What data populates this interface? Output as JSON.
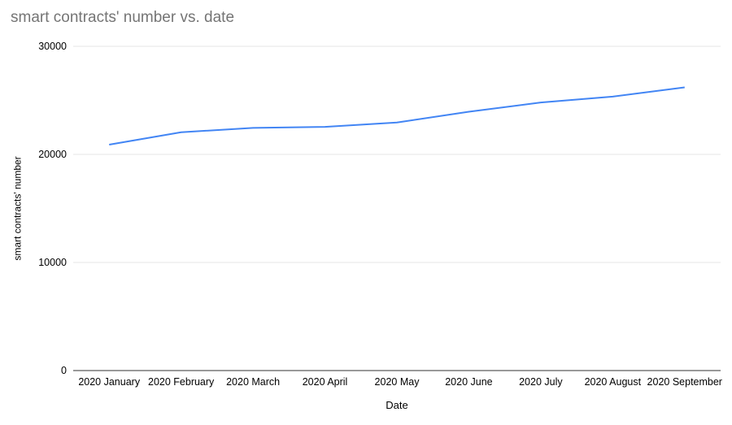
{
  "chart_data": {
    "type": "line",
    "title": "smart contracts' number vs. date",
    "xlabel": "Date",
    "ylabel": "smart contracts' number",
    "categories": [
      "2020 January",
      "2020 February",
      "2020 March",
      "2020 April",
      "2020 May",
      "2020 June",
      "2020 July",
      "2020 August",
      "2020 September"
    ],
    "series": [
      {
        "name": "smart contracts' number",
        "values": [
          20900,
          22050,
          22450,
          22550,
          22950,
          23950,
          24800,
          25350,
          26200
        ],
        "color": "#4285f4"
      }
    ],
    "ylim": [
      0,
      30000
    ],
    "yticks": [
      0,
      10000,
      20000,
      30000
    ],
    "grid": "horizontal-only",
    "legend": "none",
    "colors": {
      "title_text": "#757575",
      "tick_text": "#000000",
      "gridline": "#e6e6e6",
      "baseline": "#333333",
      "background": "#ffffff"
    }
  }
}
